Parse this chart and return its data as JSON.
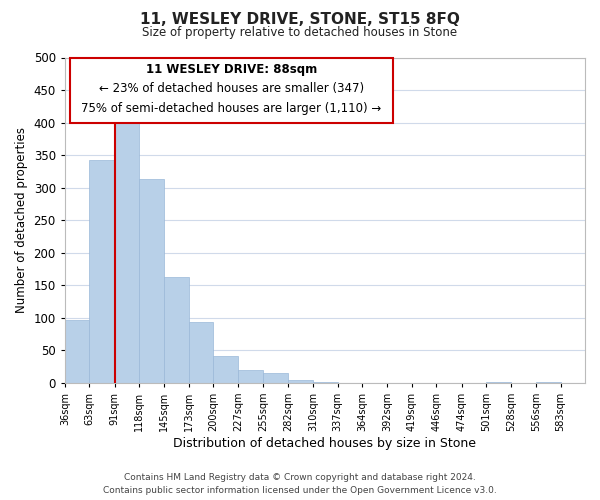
{
  "title": "11, WESLEY DRIVE, STONE, ST15 8FQ",
  "subtitle": "Size of property relative to detached houses in Stone",
  "xlabel": "Distribution of detached houses by size in Stone",
  "ylabel": "Number of detached properties",
  "bar_values": [
    97,
    343,
    411,
    313,
    163,
    94,
    42,
    20,
    15,
    5,
    2,
    0,
    0,
    0,
    0,
    0,
    0,
    2,
    0,
    2
  ],
  "bin_labels": [
    "36sqm",
    "63sqm",
    "91sqm",
    "118sqm",
    "145sqm",
    "173sqm",
    "200sqm",
    "227sqm",
    "255sqm",
    "282sqm",
    "310sqm",
    "337sqm",
    "364sqm",
    "392sqm",
    "419sqm",
    "446sqm",
    "474sqm",
    "501sqm",
    "528sqm",
    "556sqm",
    "583sqm"
  ],
  "bin_edges": [
    36,
    63,
    91,
    118,
    145,
    173,
    200,
    227,
    255,
    282,
    310,
    337,
    364,
    392,
    419,
    446,
    474,
    501,
    528,
    556,
    583
  ],
  "bar_color": "#b8d0e8",
  "bar_edge_color": "#9ab8d8",
  "property_line_x": 91,
  "property_line_color": "#cc0000",
  "ylim": [
    0,
    500
  ],
  "yticks": [
    0,
    50,
    100,
    150,
    200,
    250,
    300,
    350,
    400,
    450,
    500
  ],
  "ann_line1": "11 WESLEY DRIVE: 88sqm",
  "ann_line2": "← 23% of detached houses are smaller (347)",
  "ann_line3": "75% of semi-detached houses are larger (1,110) →",
  "footer_line1": "Contains HM Land Registry data © Crown copyright and database right 2024.",
  "footer_line2": "Contains public sector information licensed under the Open Government Licence v3.0.",
  "background_color": "#ffffff",
  "grid_color": "#d0daea"
}
